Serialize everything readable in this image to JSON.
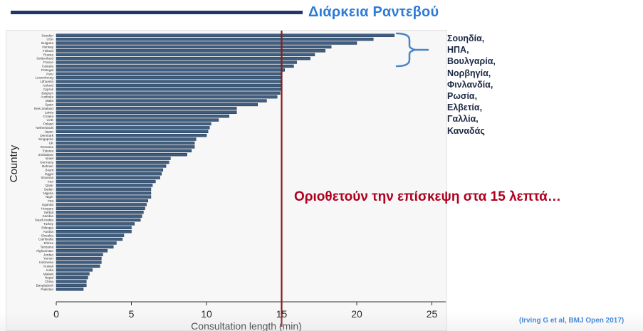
{
  "slide": {
    "title": "Διάρκεια Ραντεβού",
    "annotation": "Οριοθετούν την επίσκεψη στα 15 λεπτά…",
    "citation": "(Irving G et al, BMJ Open 2017)",
    "highlighted_countries": [
      "Σουηδία,",
      "ΗΠΑ,",
      "Βουλγαρία,",
      "Νορβηγία,",
      "Φινλανδία,",
      "Ρωσία,",
      "Ελβετία,",
      "Γαλλία,",
      "Καναδάς"
    ]
  },
  "colors": {
    "bar": "#3f5f82",
    "bar_edge": "#1e2f45",
    "reference_line": "#8b1a1a",
    "title": "#2e7bd6",
    "brace": "#4a86c5"
  },
  "chart_data": {
    "type": "bar",
    "orientation": "horizontal",
    "xlabel": "Consultation length (min)",
    "ylabel": "Country",
    "xlim": [
      0,
      26
    ],
    "xticks": [
      0,
      5,
      10,
      15,
      20,
      25
    ],
    "grid": false,
    "reference_line": {
      "x": 15
    },
    "categories": [
      "Sweden",
      "USA",
      "Bulgaria",
      "Norway",
      "Finland",
      "Russia",
      "Switzerland",
      "France",
      "Canada",
      "Portugal",
      "Peru",
      "Luxembourg",
      "Lithuania",
      "Iceland",
      "Cyprus",
      "Belgium",
      "Australia",
      "Malta",
      "Spain",
      "New Zealand",
      "Latvia",
      "Croatia",
      "UAE",
      "Poland",
      "Netherlands",
      "Japan",
      "Denmark",
      "Singapore",
      "UK",
      "Romania",
      "Estonia",
      "Zimbabwe",
      "Israel",
      "Germany",
      "Bahrain",
      "Brazil",
      "Egypt",
      "Slovenia",
      "Iran",
      "Qatar",
      "Sudan",
      "Nigeria",
      "Niger",
      "Iraq",
      "Uganda",
      "Hungary",
      "Serbia",
      "Zambia",
      "Saudi Arabia",
      "Turkey",
      "Ethiopia",
      "Austria",
      "Slovakia",
      "Cambodia",
      "Eritrea",
      "Tanzania",
      "Afghanistan",
      "Jordan",
      "Yemen",
      "Indonesia",
      "Kuwait",
      "India",
      "Malawi",
      "Nepal",
      "China",
      "Bangladesh",
      "Pakistan"
    ],
    "values": [
      22.5,
      21.1,
      20.0,
      18.3,
      17.9,
      17.2,
      16.9,
      16.0,
      15.8,
      15.2,
      15.0,
      15.0,
      15.0,
      15.0,
      15.0,
      14.9,
      14.7,
      14.0,
      13.4,
      12.0,
      12.0,
      11.5,
      10.8,
      10.3,
      10.2,
      10.1,
      10.0,
      9.3,
      9.2,
      9.2,
      9.0,
      8.7,
      7.6,
      7.5,
      7.3,
      7.1,
      7.0,
      6.9,
      6.6,
      6.4,
      6.3,
      6.3,
      6.3,
      6.1,
      6.0,
      5.9,
      5.8,
      5.7,
      5.6,
      5.2,
      5.0,
      5.0,
      4.5,
      4.4,
      4.0,
      3.8,
      3.4,
      3.1,
      3.0,
      3.0,
      2.9,
      2.4,
      2.2,
      2.1,
      2.0,
      2.0,
      1.8
    ]
  }
}
